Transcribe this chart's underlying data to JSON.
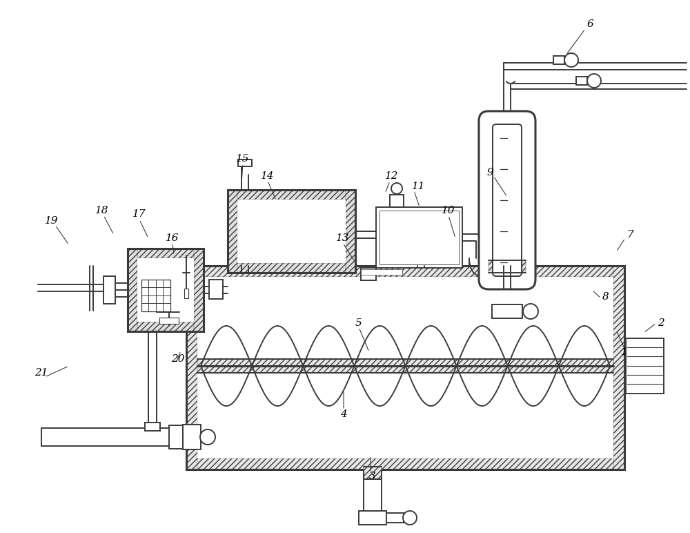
{
  "bg": "#ffffff",
  "lc": "#3a3a3a",
  "lw": 1.4,
  "tlw": 2.2,
  "hlw": 0.7,
  "figw": 10.0,
  "figh": 7.72,
  "dpi": 100
}
